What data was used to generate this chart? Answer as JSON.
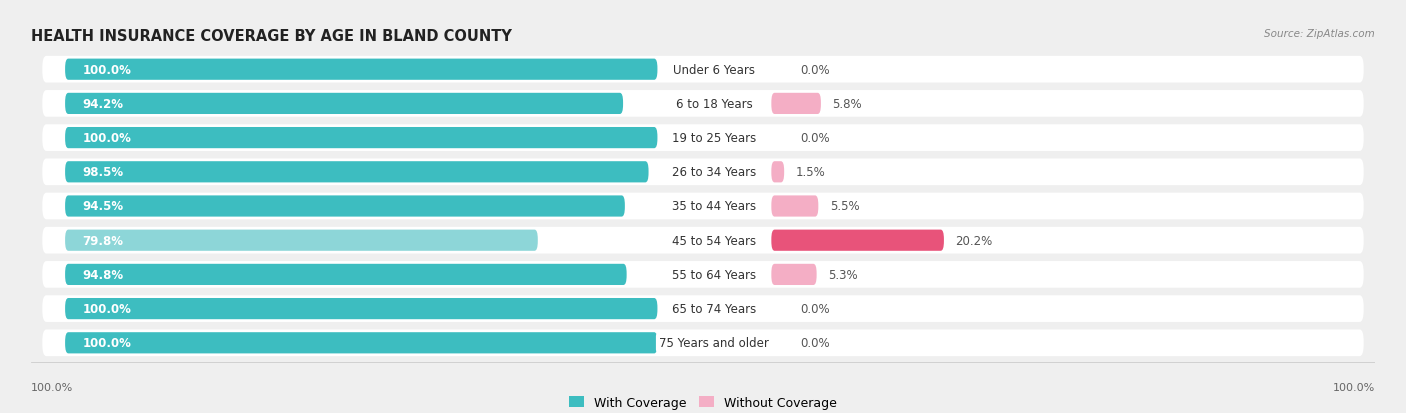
{
  "title": "HEALTH INSURANCE COVERAGE BY AGE IN BLAND COUNTY",
  "source": "Source: ZipAtlas.com",
  "categories": [
    "Under 6 Years",
    "6 to 18 Years",
    "19 to 25 Years",
    "26 to 34 Years",
    "35 to 44 Years",
    "45 to 54 Years",
    "55 to 64 Years",
    "65 to 74 Years",
    "75 Years and older"
  ],
  "with_coverage": [
    100.0,
    94.2,
    100.0,
    98.5,
    94.5,
    79.8,
    94.8,
    100.0,
    100.0
  ],
  "without_coverage": [
    0.0,
    5.8,
    0.0,
    1.5,
    5.5,
    20.2,
    5.3,
    0.0,
    0.0
  ],
  "color_with": "#3dbdc0",
  "color_with_light": "#8dd6d8",
  "color_without_large": "#e8537a",
  "color_without_small": "#f4aec5",
  "row_bg_color": "#ffffff",
  "page_bg_color": "#efefef",
  "title_fontsize": 10.5,
  "bar_label_fontsize": 8.5,
  "cat_label_fontsize": 8.5,
  "pct_label_fontsize": 8.5,
  "legend_fontsize": 9,
  "axis_label_fontsize": 8
}
